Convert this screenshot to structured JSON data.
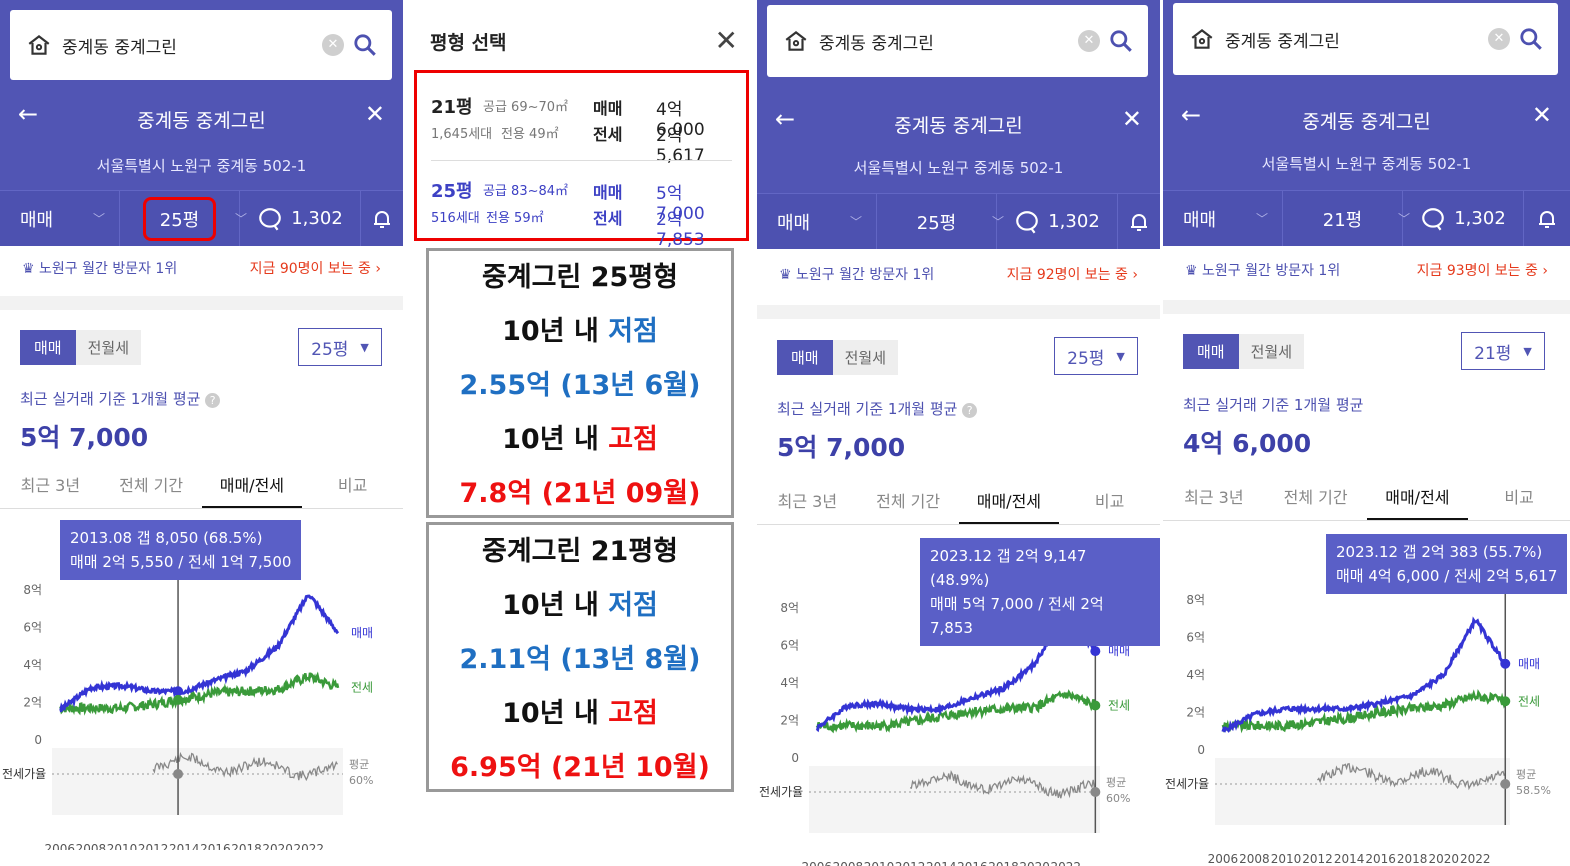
{
  "panels": [
    {
      "search": "중계동 중계그린",
      "title": "중계동 중계그린",
      "address": "서울특별시 노원구 중계동 502-1",
      "trade_type": "매매",
      "size": "25평",
      "comments": "1,302",
      "rank_text": "노원구 월간 방문자 1위",
      "viewers": "지금 90명이 보는 중",
      "seg_on": "매매",
      "seg_off": "전월세",
      "select": "25평",
      "avg_label": "최근 실거래 기준 1개월 평균",
      "avg_value": "5억 7,000",
      "tabs": [
        "최근 3년",
        "전체 기간",
        "매매/전세",
        "비교"
      ],
      "tip1": "2013.08  갭 8,050 (68.5%)",
      "tip2": "매매 2억 5,550 / 전세 1억 7,500",
      "ratio_label": "평균",
      "ratio_value": "60%"
    },
    {
      "search": "중계동 중계그린",
      "title": "중계동 중계그린",
      "address": "서울특별시 노원구 중계동 502-1",
      "trade_type": "매매",
      "size": "25평",
      "comments": "1,302",
      "rank_text": "노원구 월간 방문자 1위",
      "viewers": "지금 92명이 보는 중",
      "seg_on": "매매",
      "seg_off": "전월세",
      "select": "25평",
      "avg_label": "최근 실거래 기준 1개월 평균",
      "avg_value": "5억 7,000",
      "tabs": [
        "최근 3년",
        "전체 기간",
        "매매/전세",
        "비교"
      ],
      "tip1": "2023.12  갭 2억 9,147 (48.9%)",
      "tip2": "매매 5억 7,000 / 전세 2억 7,853",
      "ratio_label": "평균",
      "ratio_value": "60%"
    },
    {
      "search": "중계동 중계그린",
      "title": "중계동 중계그린",
      "address": "서울특별시 노원구 중계동 502-1",
      "trade_type": "매매",
      "size": "21평",
      "comments": "1,302",
      "rank_text": "노원구 월간 방문자 1위",
      "viewers": "지금 93명이 보는 중",
      "seg_on": "매매",
      "seg_off": "전월세",
      "select": "21평",
      "avg_label": "최근 실거래 기준 1개월 평균",
      "avg_value": "4억 6,000",
      "tabs": [
        "최근 3년",
        "전체 기간",
        "매매/전세",
        "비교"
      ],
      "tip1": "2023.12  갭 2억 383 (55.7%)",
      "tip2": "매매 4억 6,000 / 전세 2억 5,617",
      "ratio_label": "평균",
      "ratio_value": "58.5%"
    }
  ],
  "chart_common": {
    "y_ticks": [
      "8억",
      "6억",
      "4억",
      "2억",
      "0"
    ],
    "x_ticks": [
      "2006",
      "2008",
      "2010",
      "2012",
      "2014",
      "2016",
      "2018",
      "2020",
      "2022"
    ],
    "series_sale": "매매",
    "series_jeonse": "전세",
    "ratio_axis": "전세가율"
  },
  "modal": {
    "title": "평형 선택",
    "options": [
      {
        "size": "21평",
        "supply": "공급 69~70㎡",
        "units": "1,645세대",
        "area": "전용 49㎡",
        "sale_label": "매매",
        "sale": "4억 6,000",
        "jeonse_label": "전세",
        "jeonse": "2억 5,617"
      },
      {
        "size": "25평",
        "supply": "공급 83~84㎡",
        "units": "516세대",
        "area": "전용 59㎡",
        "sale_label": "매매",
        "sale": "5억 7,000",
        "jeonse_label": "전세",
        "jeonse": "2억 7,853"
      }
    ]
  },
  "notes": [
    {
      "l1a": "중계그린 ",
      "l1b": "25평형",
      "l2a": "10년 내 ",
      "l2b": "저점",
      "l3": "2.55억 (13년 6월)",
      "l4a": "10년 내 ",
      "l4b": "고점",
      "l5": "7.8억 (21년 09월)"
    },
    {
      "l1a": "중계그린 ",
      "l1b": "21평형",
      "l2a": "10년 내 ",
      "l2b": "저점",
      "l3": "2.11억 (13년 8월)",
      "l4a": "10년 내 ",
      "l4b": "고점",
      "l5": "6.95억 (21년 10월)"
    }
  ],
  "chart_data": [
    {
      "type": "line",
      "title": "",
      "x": [
        2006,
        2008,
        2010,
        2012,
        2014,
        2016,
        2018,
        2020,
        2022,
        2023.9
      ],
      "series": [
        {
          "name": "매매",
          "values": [
            1.6,
            2.8,
            2.9,
            2.6,
            2.6,
            3.2,
            3.7,
            5.0,
            7.8,
            5.7
          ]
        },
        {
          "name": "전세",
          "values": [
            null,
            null,
            1.7,
            1.9,
            2.2,
            2.5,
            2.6,
            2.7,
            3.4,
            2.8
          ]
        }
      ],
      "ylim": [
        0,
        8
      ]
    },
    {
      "type": "line",
      "title": "",
      "x": [
        2006,
        2008,
        2010,
        2012,
        2014,
        2016,
        2018,
        2020,
        2022,
        2023.9
      ],
      "series": [
        {
          "name": "매매",
          "values": [
            1.6,
            2.8,
            2.9,
            2.6,
            2.6,
            3.2,
            3.7,
            5.0,
            7.8,
            5.7
          ]
        },
        {
          "name": "전세",
          "values": [
            null,
            null,
            1.7,
            1.9,
            2.2,
            2.5,
            2.6,
            2.7,
            3.4,
            2.8
          ]
        }
      ],
      "ylim": [
        0,
        8
      ]
    },
    {
      "type": "line",
      "title": "",
      "x": [
        2006,
        2008,
        2010,
        2012,
        2014,
        2016,
        2018,
        2020,
        2022,
        2023.9
      ],
      "series": [
        {
          "name": "매매",
          "values": [
            1.0,
            1.9,
            2.2,
            2.2,
            2.2,
            2.5,
            2.9,
            4.0,
            6.95,
            4.6
          ]
        },
        {
          "name": "전세",
          "values": [
            null,
            null,
            1.3,
            1.5,
            1.7,
            2.0,
            2.2,
            2.4,
            2.9,
            2.6
          ]
        }
      ],
      "ylim": [
        0,
        8
      ]
    }
  ],
  "colors": {
    "header": "#5155b4",
    "sale": "#3434d4",
    "jeonse": "#3a9a3a",
    "highlight": "#e00"
  }
}
